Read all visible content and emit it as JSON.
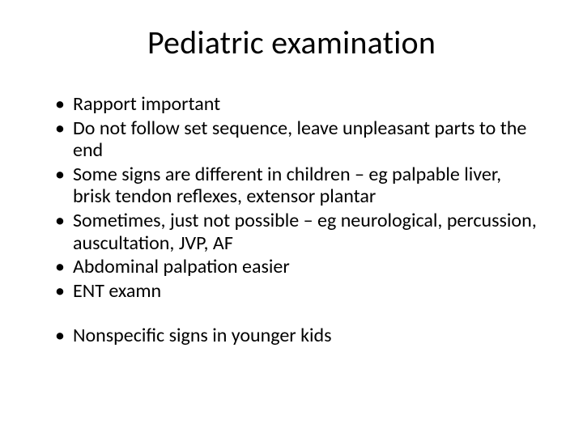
{
  "title": "Pediatric examination",
  "bullets_group1": [
    "Rapport important",
    "Do not follow set sequence, leave unpleasant parts to the end",
    "Some signs are different in children – eg palpable liver, brisk tendon reflexes, extensor plantar",
    "Sometimes, just not possible – eg neurological, percussion, auscultation, JVP, AF",
    "Abdominal palpation easier",
    "ENT examn"
  ],
  "bullets_group2": [
    "Nonspecific signs in younger kids"
  ],
  "colors": {
    "background": "#ffffff",
    "text": "#000000"
  },
  "typography": {
    "title_fontsize": 40,
    "body_fontsize": 24,
    "font_family": "Calibri"
  }
}
